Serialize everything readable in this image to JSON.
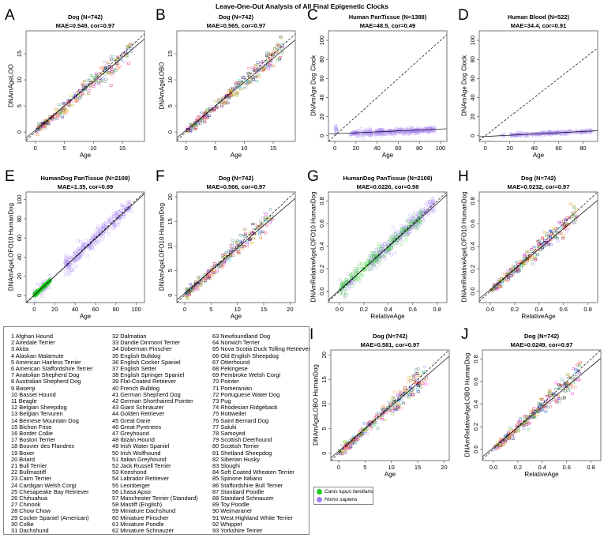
{
  "title": "Leave-One-Out Analysis of All Final Epigenetic Clocks",
  "colors": {
    "dog": "#22cc22",
    "human": "#a07cf0",
    "identity": "#000000",
    "fit": "#000000"
  },
  "species_legend": [
    {
      "label": "Canis lupus familiaris",
      "color": "#22cc22"
    },
    {
      "label": "Homo sapiens",
      "color": "#a07cf0"
    }
  ],
  "breeds": {
    "col1": [
      "1 Afghan Hound",
      "2 Airedale Terrier",
      "3 Akita",
      "4 Alaskan Malamute",
      "5 American Hairless Terrier",
      "6 American Staffordshire Terrier",
      "7 Anatolian Shepherd Dog",
      "8 Australian Shepherd Dog",
      "9 Basenji",
      "10 Basset Hound",
      "11 Beagle",
      "12 Belgian Sheepdog",
      "13 Belgian Tervuren",
      "14 Bernese Mountain Dog",
      "15 Bichon Frise",
      "16 Border Collie",
      "17 Boston Terrier",
      "18 Bouvier des Flandres",
      "19 Boxer",
      "20 Briard",
      "21 Bull Terrier",
      "22 Bullmastiff",
      "23 Cairn Terrier",
      "24 Cardigan Welsh Corgi",
      "25 Chesapeake Bay Retriever",
      "26 Chihuahua",
      "27 Chinook",
      "28 Chow Chow",
      "29 Cocker Spaniel (American)",
      "30 Collie",
      "31 Dachshund"
    ],
    "col2": [
      "32 Dalmatian",
      "33 Dandie Dinmont Terrier",
      "34 Doberman Pinscher",
      "35 English Bulldog",
      "36 English Cocker Spaniel",
      "37 English Setter",
      "38 English Springer Spaniel",
      "39 Flat-Coated Retriever",
      "40 French Bulldog",
      "41 German Shepherd Dog",
      "42 German Shorthaired Pointer",
      "43 Giant Schnauzer",
      "44 Golden Retriever",
      "45 Great Dane",
      "46 Great Pyrenees",
      "47 Greyhound",
      "48 Ibizan Hound",
      "49 Irish Water Spaniel",
      "50 Irish Wolfhound",
      "51 Italian Greyhound",
      "52 Jack Russell Terrier",
      "53 Keeshond",
      "54 Labrador Retriever",
      "55 Leonberger",
      "56 Lhasa Apso",
      "57 Manchester Terrier (Standard)",
      "58 Mastiff (English)",
      "59 Miniature Dachshund",
      "60 Miniature Pinscher",
      "61 Miniature Poodle",
      "62 Miniature Schnauzer"
    ],
    "col3": [
      "63 Newfoundland Dog",
      "64 Norwich Terrier",
      "65 Nova Scotia Duck Tolling Retriever",
      "66 Old English Sheepdog",
      "67 Otterhound",
      "68 Pekingese",
      "69 Pembroke Welsh Corgi",
      "70 Pointer",
      "71 Pomeranian",
      "72 Portuguese Water Dog",
      "73 Pug",
      "74 Rhodesian Ridgeback",
      "75 Rottweiler",
      "76 Saint Bernard Dog",
      "77 Saluki",
      "78 Samoyed",
      "79 Scottish Deerhound",
      "80 Scottish Terrier",
      "81 Shetland Sheepdog",
      "82 Siberian Husky",
      "83 Sloughi",
      "84 Soft Coated Wheaten Terrier",
      "85 Spinone Italiano",
      "86 Staffordshire Bull Terrier",
      "87 Standard Poodle",
      "88 Standard Schnauzer",
      "89 Toy Poodle",
      "90 Weimaraner",
      "91 West Highland White Terrier",
      "92 Whippet",
      "93 Yorkshire Terrier"
    ]
  },
  "chart_data": [
    {
      "id": "A",
      "type": "scatter",
      "title": "Dog (N=742)",
      "subtitle": "MAE=0.549, cor=0.97",
      "xlabel": "Age",
      "ylabel": "DNAmAgeLOO",
      "n": 742,
      "mae": 0.549,
      "cor": 0.97,
      "points": "dog-age",
      "xlim": [
        -1.6,
        18.8
      ],
      "ylim": [
        -1.8,
        19.4
      ],
      "xticks": [
        "0",
        "5",
        "10",
        "15"
      ],
      "yticks": [
        "0",
        "5",
        "10",
        "15"
      ],
      "fit": [
        0.35,
        0.93
      ]
    },
    {
      "id": "B",
      "type": "scatter",
      "title": "Dog (N=742)",
      "subtitle": "MAE=0.565, cor=0.97",
      "xlabel": "Age",
      "ylabel": "DNAmAgeLOBO",
      "n": 742,
      "mae": 0.565,
      "cor": 0.97,
      "points": "dog-age",
      "xlim": [
        -1.6,
        18.8
      ],
      "ylim": [
        -1.8,
        19.4
      ],
      "xticks": [
        "0",
        "5",
        "10",
        "15"
      ],
      "yticks": [
        "0",
        "5",
        "10",
        "15"
      ],
      "fit": [
        0.35,
        0.92
      ]
    },
    {
      "id": "C",
      "type": "scatter",
      "title": "Human PanTissue (N=1388)",
      "subtitle": "MAE=48.5, cor=0.49",
      "xlabel": "Age",
      "ylabel": "DNAmAge Dog Clock",
      "n": 1388,
      "mae": 48.5,
      "cor": 0.49,
      "points": "human-pantissue",
      "xlim": [
        -6,
        106
      ],
      "ylim": [
        -6,
        110
      ],
      "xticks": [
        "0",
        "20",
        "40",
        "60",
        "80",
        "100"
      ],
      "yticks": [
        "0",
        "20",
        "40",
        "60",
        "80",
        "100"
      ],
      "fit": [
        2.0,
        0.05
      ]
    },
    {
      "id": "D",
      "type": "scatter",
      "title": "Human Blood (N=522)",
      "subtitle": "MAE=34.4, cor=0.91",
      "xlabel": "Age",
      "ylabel": "DNAmAge Dog Clock",
      "n": 522,
      "mae": 34.4,
      "cor": 0.91,
      "points": "human-blood",
      "xlim": [
        -5,
        92
      ],
      "ylim": [
        -6,
        110
      ],
      "xticks": [
        "0",
        "20",
        "40",
        "60",
        "80"
      ],
      "yticks": [
        "0",
        "20",
        "40",
        "60",
        "80",
        "100"
      ],
      "fit": [
        -0.8,
        0.065
      ]
    },
    {
      "id": "E",
      "type": "scatter",
      "title": "HumanDog PanTissue (N=2108)",
      "subtitle": "MAE=1.35, cor=0.99",
      "xlabel": "Age",
      "ylabel": "DNAmAgeLOFO10 HumanDog",
      "n": 2108,
      "mae": 1.35,
      "cor": 0.99,
      "points": "mixed-age",
      "xlim": [
        -8,
        108
      ],
      "ylim": [
        -7.5,
        108
      ],
      "xticks": [
        "0",
        "20",
        "40",
        "60",
        "80",
        "100"
      ],
      "yticks": [
        "0",
        "20",
        "40",
        "60",
        "80",
        "100"
      ],
      "fit": [
        0.3,
        0.98
      ]
    },
    {
      "id": "F",
      "type": "scatter",
      "title": "Dog (N=742)",
      "subtitle": "MAE=0.566, cor=0.97",
      "xlabel": "Age",
      "ylabel": "DNAmAgeLOFO10 HumanDog",
      "n": 742,
      "mae": 0.566,
      "cor": 0.97,
      "points": "dog-age",
      "xlim": [
        -1.5,
        21
      ],
      "ylim": [
        -1.5,
        21
      ],
      "xticks": [
        "0",
        "5",
        "10",
        "15",
        "20"
      ],
      "yticks": [
        "0",
        "5",
        "10",
        "15",
        "20"
      ],
      "fit": [
        0.4,
        0.92
      ]
    },
    {
      "id": "G",
      "type": "scatter",
      "title": "HumanDog PanTissue (N=2108)",
      "subtitle": "MAE=0.0226, cor=0.98",
      "xlabel": "RelativeAge",
      "ylabel": "DNAmRelativeAgeLOFO10 HumanDog",
      "n": 2108,
      "mae": 0.0226,
      "cor": 0.98,
      "points": "mixed-rel",
      "xlim": [
        -0.09,
        0.88
      ],
      "ylim": [
        -0.1,
        0.88
      ],
      "xticks": [
        "0.0",
        "0.2",
        "0.4",
        "0.6",
        "0.8"
      ],
      "yticks": [
        "0.0",
        "0.2",
        "0.4",
        "0.6",
        "0.8"
      ],
      "fit": [
        0.01,
        0.96
      ]
    },
    {
      "id": "H",
      "type": "scatter",
      "title": "Dog (N=742)",
      "subtitle": "MAE=0.0232, cor=0.97",
      "xlabel": "RelativeAge",
      "ylabel": "DNAmRelativeAgeLOFO10 HumanDog",
      "n": 742,
      "mae": 0.0232,
      "cor": 0.97,
      "points": "dog-rel",
      "xlim": [
        -0.09,
        0.88
      ],
      "ylim": [
        -0.1,
        0.88
      ],
      "xticks": [
        "0.0",
        "0.2",
        "0.4",
        "0.6",
        "0.8"
      ],
      "yticks": [
        "0.0",
        "0.2",
        "0.4",
        "0.6",
        "0.8"
      ],
      "fit": [
        0.015,
        0.9
      ]
    },
    {
      "id": "I",
      "type": "scatter",
      "title": "Dog (N=742)",
      "subtitle": "MAE=0.581, cor=0.97",
      "xlabel": "Age",
      "ylabel": "DNAmAgeLOBO HumanDog",
      "n": 742,
      "mae": 0.581,
      "cor": 0.97,
      "points": "dog-age",
      "xlim": [
        -1.5,
        21
      ],
      "ylim": [
        -1.5,
        21
      ],
      "xticks": [
        "0",
        "5",
        "10",
        "15",
        "20"
      ],
      "yticks": [
        "0",
        "5",
        "10",
        "15",
        "20"
      ],
      "fit": [
        0.4,
        0.92
      ]
    },
    {
      "id": "J",
      "type": "scatter",
      "title": "Dog (N=742)",
      "subtitle": "MAE=0.0249, cor=0.97",
      "xlabel": "RelativeAge",
      "ylabel": "DNAmRelativeAgeLOBO HumanDog",
      "n": 742,
      "mae": 0.0249,
      "cor": 0.97,
      "points": "dog-rel",
      "xlim": [
        -0.09,
        0.88
      ],
      "ylim": [
        -0.1,
        0.88
      ],
      "xticks": [
        "0.0",
        "0.2",
        "0.4",
        "0.6",
        "0.8"
      ],
      "yticks": [
        "0.0",
        "0.2",
        "0.4",
        "0.6",
        "0.8"
      ],
      "fit": [
        0.015,
        0.9
      ]
    }
  ]
}
